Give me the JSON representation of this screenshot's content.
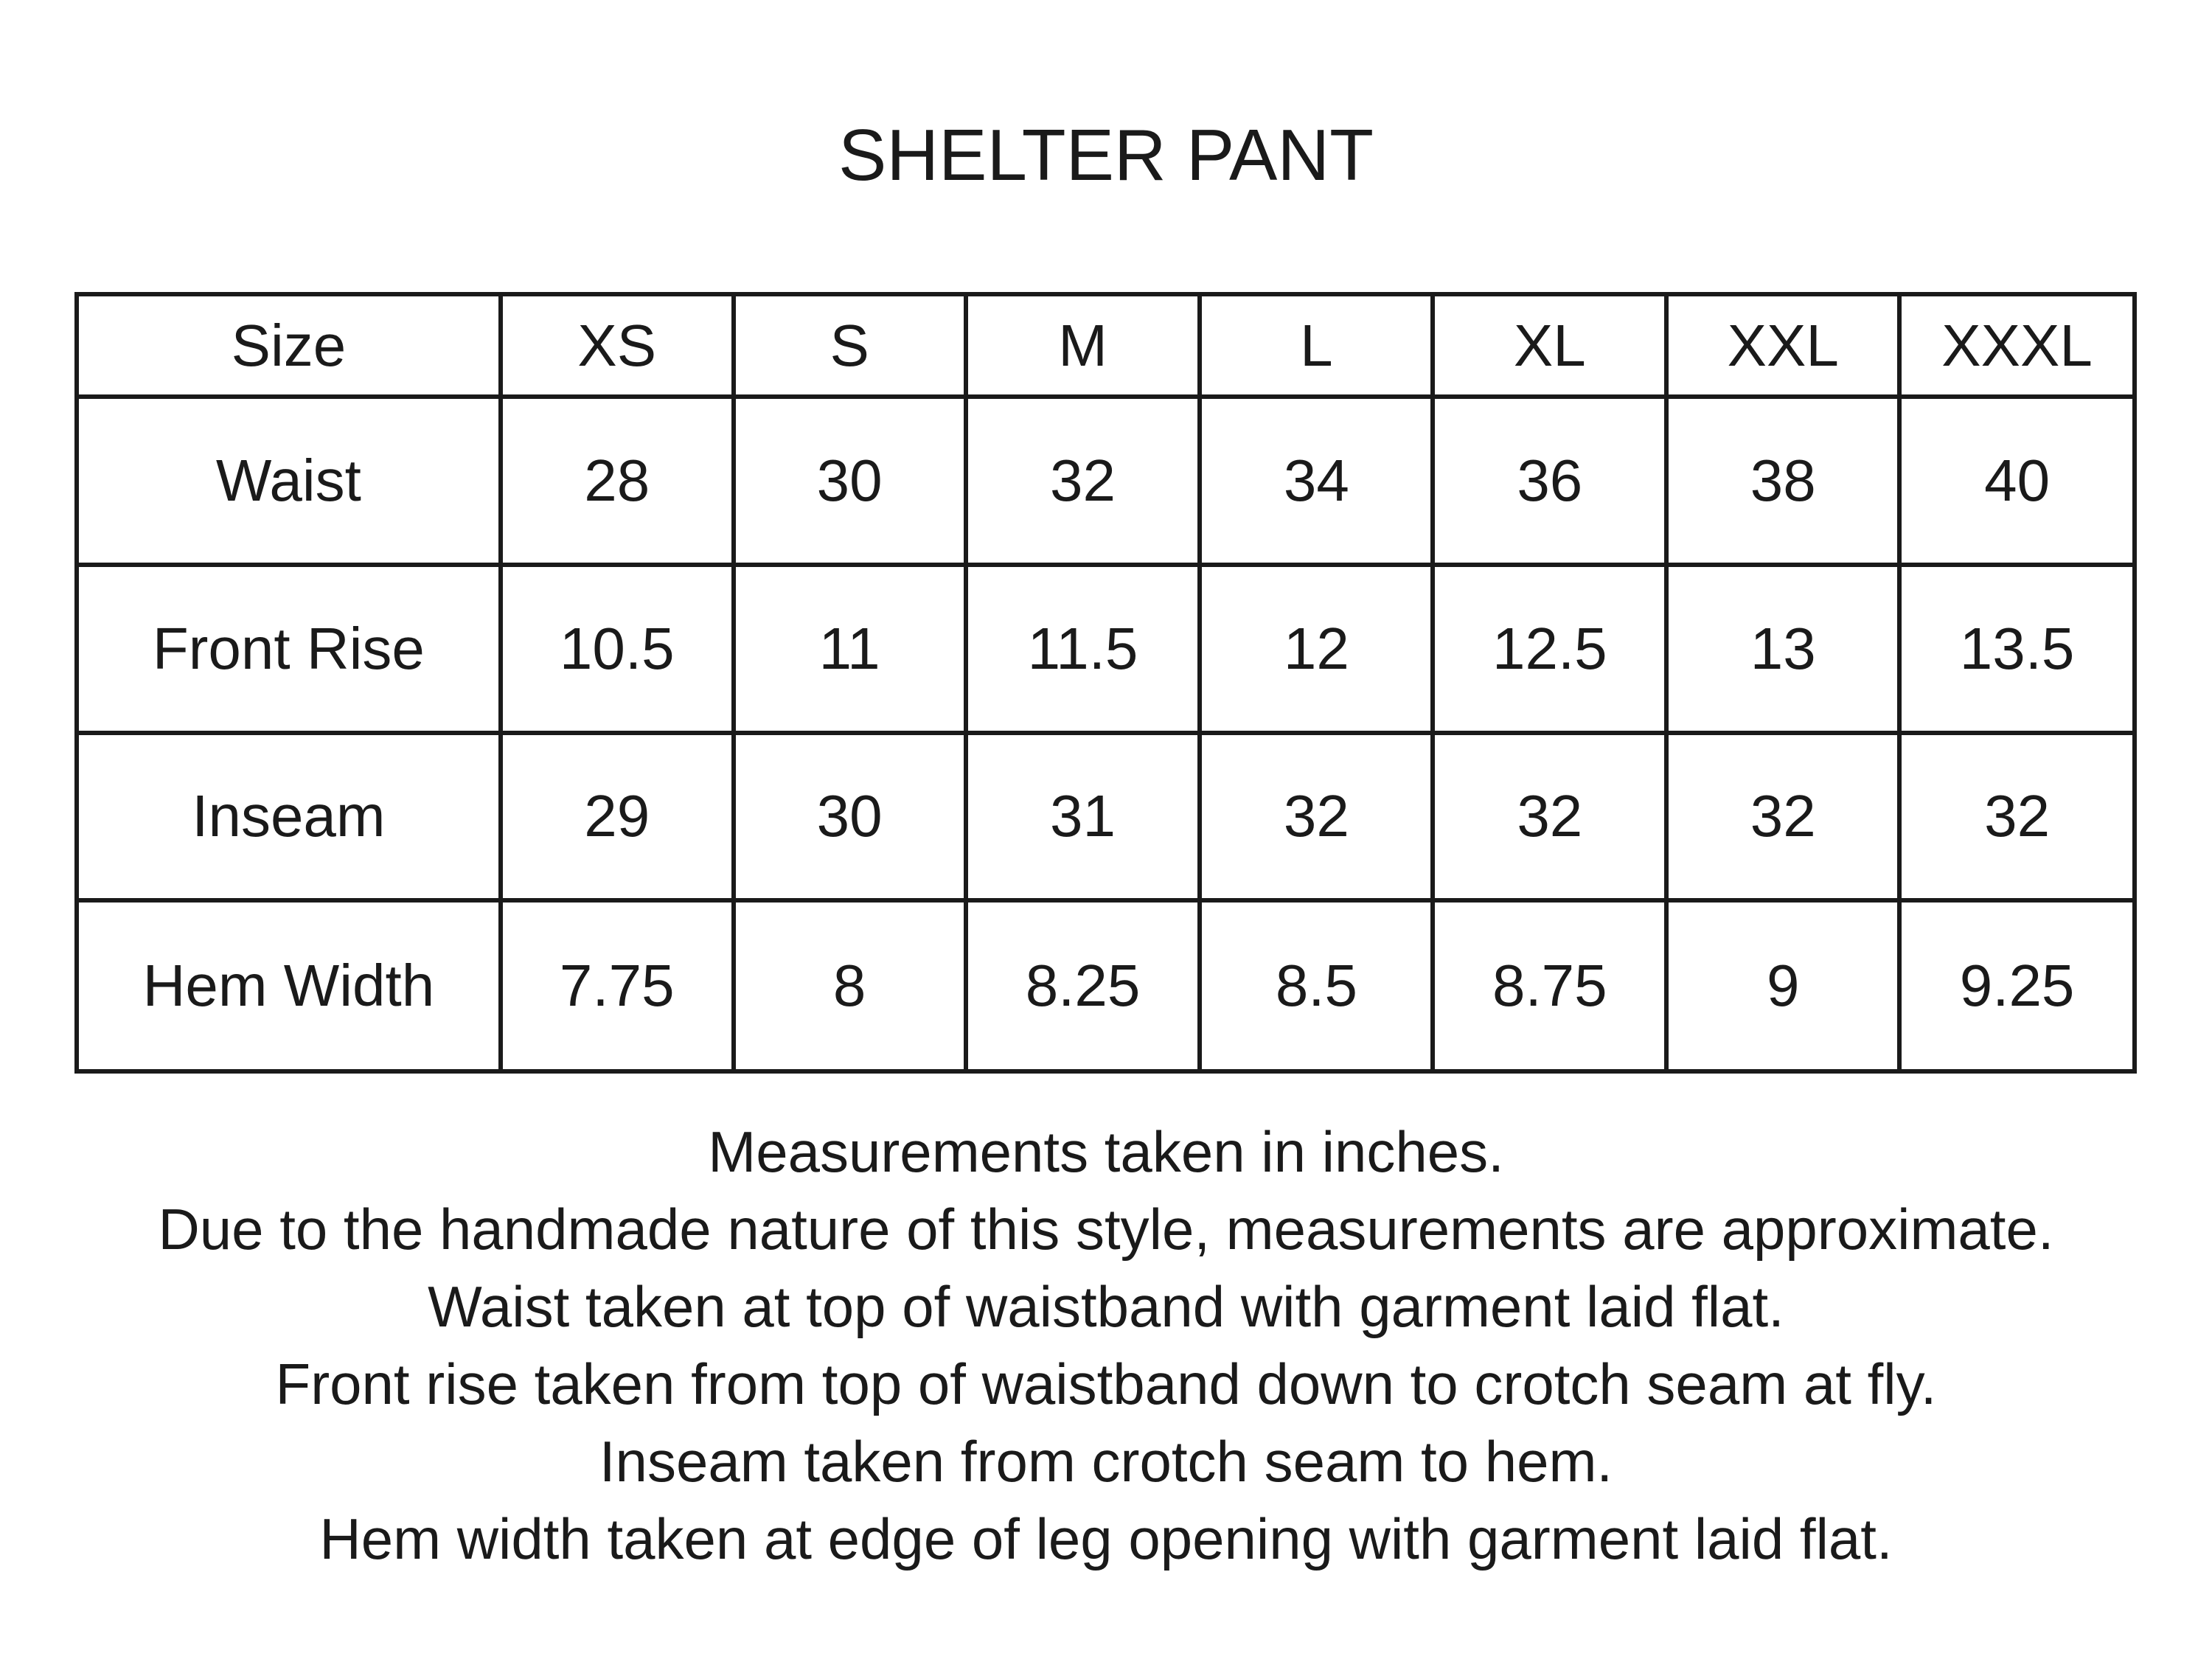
{
  "title": "SHELTER PANT",
  "table": {
    "header": [
      "Size",
      "XS",
      "S",
      "M",
      "L",
      "XL",
      "XXL",
      "XXXL"
    ],
    "rows": [
      [
        "Waist",
        "28",
        "30",
        "32",
        "34",
        "36",
        "38",
        "40"
      ],
      [
        "Front Rise",
        "10.5",
        "11",
        "11.5",
        "12",
        "12.5",
        "13",
        "13.5"
      ],
      [
        "Inseam",
        "29",
        "30",
        "31",
        "32",
        "32",
        "32",
        "32"
      ],
      [
        "Hem Width",
        "7.75",
        "8",
        "8.25",
        "8.5",
        "8.75",
        "9",
        "9.25"
      ]
    ]
  },
  "notes": [
    "Measurements taken in inches.",
    "Due to the handmade nature of this style, measurements are approximate.",
    "Waist taken at top of waistband with garment laid flat.",
    "Front rise taken from top of waistband down to crotch seam at fly.",
    "Inseam taken from crotch seam to hem.",
    "Hem width taken at edge of leg opening with garment laid flat."
  ]
}
